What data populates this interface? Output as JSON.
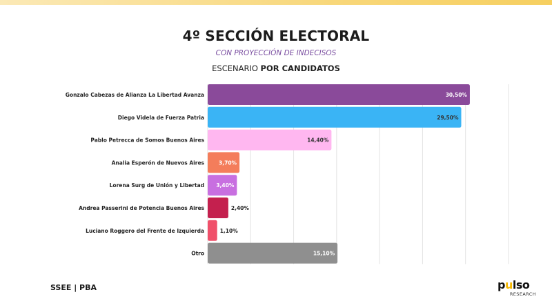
{
  "header": {
    "title": "4º SECCIÓN ELECTORAL",
    "subtitle": "CON PROYECCIÓN DE INDECISOS",
    "scenario_prefix": "ESCENARIO ",
    "scenario_bold": "POR CANDIDATOS"
  },
  "footer": {
    "left_text": "SSEE | PBA",
    "logo_text_a": "p",
    "logo_text_accent": "u",
    "logo_text_b": "lso",
    "logo_sub": "RESEARCH"
  },
  "colors": {
    "strip_gold": "#f6cf60",
    "grid": "#e3e3e3"
  },
  "chart_data": {
    "type": "bar",
    "orientation": "horizontal",
    "grid": true,
    "xlim": [
      0,
      35
    ],
    "categories": [
      "Gonzalo Cabezas de Alianza La Libertad Avanza",
      "Diego Videla de Fuerza Patria",
      "Pablo Petrecca de Somos Buenos Aires",
      "Analia Esperón de Nuevos Aires",
      "Lorena Surg de Unión y Libertad",
      "Andrea Passerini de Potencia Buenos Aires",
      "Luciano Roggero del Frente de Izquierda",
      "Otro"
    ],
    "values": [
      30.5,
      29.5,
      14.4,
      3.7,
      3.4,
      2.4,
      1.1,
      15.1
    ],
    "labels": [
      "30,50%",
      "29,50%",
      "14,40%",
      "3,70%",
      "3,40%",
      "2,40%",
      "1,10%",
      "15,10%"
    ],
    "colors": [
      "#8a4a9a",
      "#3ab4f5",
      "#ffb7f0",
      "#f47d5b",
      "#c86fe0",
      "#c4204e",
      "#f0506a",
      "#8f8f8f"
    ],
    "label_colors": [
      "#ffffff",
      "#333333",
      "#333333",
      "#ffffff",
      "#ffffff",
      "#222222",
      "#222222",
      "#ffffff"
    ],
    "label_inside": [
      true,
      true,
      true,
      true,
      true,
      false,
      false,
      true
    ]
  }
}
